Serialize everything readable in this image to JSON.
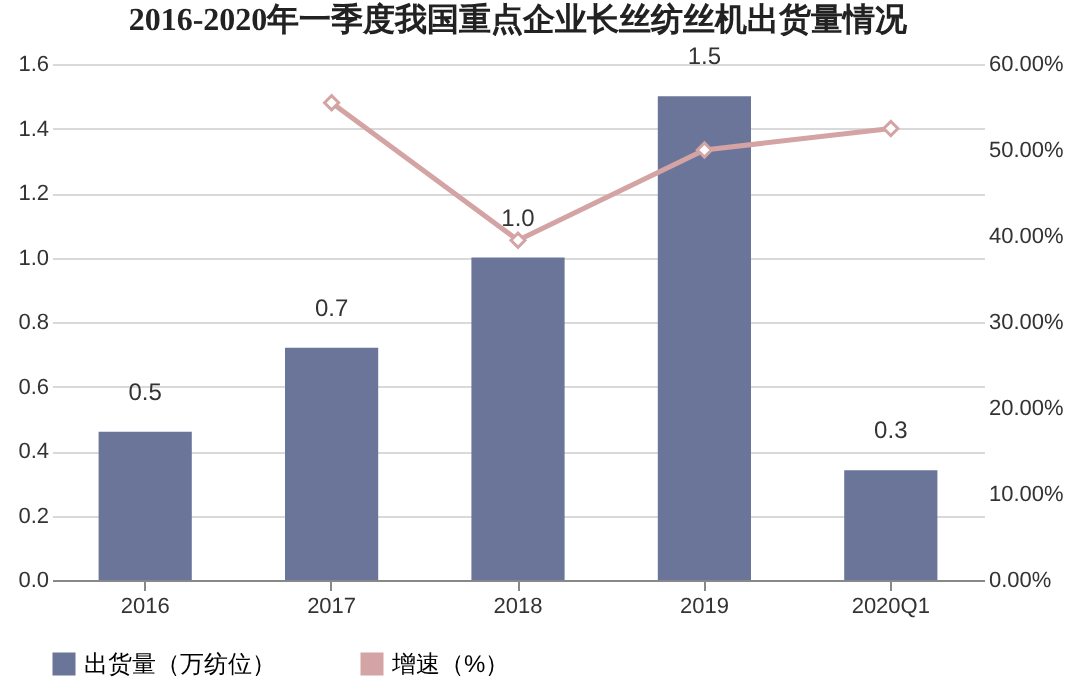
{
  "chart_data": {
    "type": "bar",
    "title": "2016-2020年一季度我国重点企业长丝纺丝机出货量情况",
    "categories": [
      "2016",
      "2017",
      "2018",
      "2019",
      "2020Q1"
    ],
    "series": [
      {
        "name": "出货量（万纺位）",
        "color": "#6b7599",
        "values": [
          0.46,
          0.72,
          1.0,
          1.5,
          0.34
        ],
        "value_labels": [
          "0.5",
          "0.7",
          "1.0",
          "1.5",
          "0.3"
        ]
      },
      {
        "name": "增速（%）",
        "type": "line",
        "axis": "y2",
        "color": "#d4a3a3",
        "marker": "diamond",
        "values": [
          null,
          55.5,
          39.5,
          50.0,
          52.5
        ]
      }
    ],
    "ylim": [
      0,
      1.6
    ],
    "yticks": [
      {
        "value": 0,
        "label": "0.0"
      },
      {
        "value": 0.2,
        "label": "0.2"
      },
      {
        "value": 0.4,
        "label": "0.4"
      },
      {
        "value": 0.6,
        "label": "0.6"
      },
      {
        "value": 0.8,
        "label": "0.8"
      },
      {
        "value": 1.0,
        "label": "1.0"
      },
      {
        "value": 1.2,
        "label": "1.2"
      },
      {
        "value": 1.4,
        "label": "1.4"
      },
      {
        "value": 1.6,
        "label": "1.6"
      }
    ],
    "y2lim": [
      0,
      60
    ],
    "y2ticks": [
      {
        "value": 0,
        "label": "0.00%"
      },
      {
        "value": 10,
        "label": "10.00%"
      },
      {
        "value": 20,
        "label": "20.00%"
      },
      {
        "value": 30,
        "label": "30.00%"
      },
      {
        "value": 40,
        "label": "40.00%"
      },
      {
        "value": 50,
        "label": "50.00%"
      },
      {
        "value": 60,
        "label": "60.00%"
      }
    ],
    "grid": "y",
    "legend": "bottom"
  }
}
